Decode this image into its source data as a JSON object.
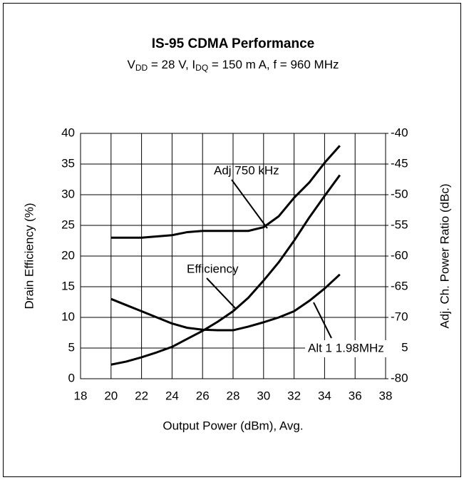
{
  "chart_data": {
    "type": "line",
    "title": "IS-95 CDMA Performance",
    "subtitle_parts": [
      "V",
      "DD",
      " = 28 V,  I",
      "DQ",
      " = 150 m A, f = 960 MHz"
    ],
    "xlabel": "Output Power (dBm), Avg.",
    "ylabel": "Drain Efficiency (%)",
    "y2label": "Adj. Ch. Power Ratio (dBc)",
    "x": [
      20,
      21,
      22,
      23,
      24,
      25,
      26,
      27,
      28,
      29,
      30,
      31,
      32,
      33,
      34,
      35
    ],
    "xlim": [
      18,
      38
    ],
    "xticks": [
      18,
      20,
      22,
      24,
      26,
      28,
      30,
      32,
      34,
      36,
      38
    ],
    "ylim": [
      0,
      40
    ],
    "yticks": [
      0,
      5,
      10,
      15,
      20,
      25,
      30,
      35,
      40
    ],
    "y2lim": [
      -80,
      -40
    ],
    "y2ticks": [
      -80,
      -75,
      -70,
      -65,
      -60,
      -55,
      -50,
      -45,
      -40
    ],
    "grid": true,
    "series": [
      {
        "name": "Efficiency",
        "color": "#000000",
        "axis": "y",
        "values": [
          2.3,
          2.8,
          3.5,
          4.3,
          5.2,
          6.5,
          7.8,
          9.3,
          11,
          13.2,
          16,
          19,
          22.5,
          26.3,
          29.8,
          33.2
        ]
      },
      {
        "name": "Adj 750 kHz",
        "color": "#000000",
        "axis": "y2",
        "values": [
          -57,
          -57,
          -57,
          -56.8,
          -56.6,
          -56.1,
          -55.9,
          -55.9,
          -55.9,
          -55.9,
          -55.3,
          -53.5,
          -50.5,
          -48,
          -44.8,
          -42
        ]
      },
      {
        "name": "Alt 1 1.98MHz",
        "color": "#000000",
        "axis": "y2",
        "values": [
          -67,
          -68,
          -69,
          -70,
          -71,
          -71.7,
          -72,
          -72.1,
          -72.1,
          -71.5,
          -70.8,
          -70,
          -69,
          -67.3,
          -65.3,
          -63
        ]
      }
    ]
  }
}
